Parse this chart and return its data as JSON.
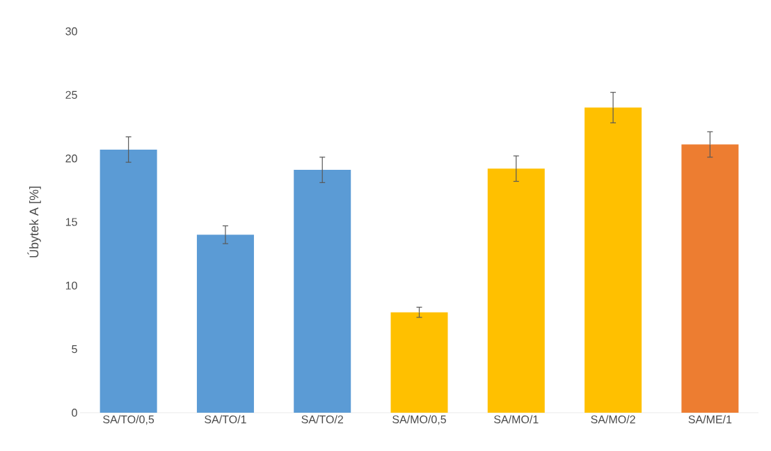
{
  "chart_data": {
    "type": "bar",
    "ylabel": "Úbytek A [%]",
    "categories": [
      "SA/TO/0,5",
      "SA/TO/1",
      "SA/TO/2",
      "SA/MO/0,5",
      "SA/MO/1",
      "SA/MO/2",
      "SA/ME/1"
    ],
    "values": [
      20.7,
      14.0,
      19.1,
      7.9,
      19.2,
      24.0,
      21.1
    ],
    "errors": [
      1.0,
      0.7,
      1.0,
      0.4,
      1.0,
      1.2,
      1.0
    ],
    "colors": [
      "#5b9bd5",
      "#5b9bd5",
      "#5b9bd5",
      "#ffc000",
      "#ffc000",
      "#ffc000",
      "#ed7d31"
    ],
    "ylim": [
      0,
      30
    ],
    "yticks": [
      0,
      5,
      10,
      15,
      20,
      25,
      30
    ]
  }
}
